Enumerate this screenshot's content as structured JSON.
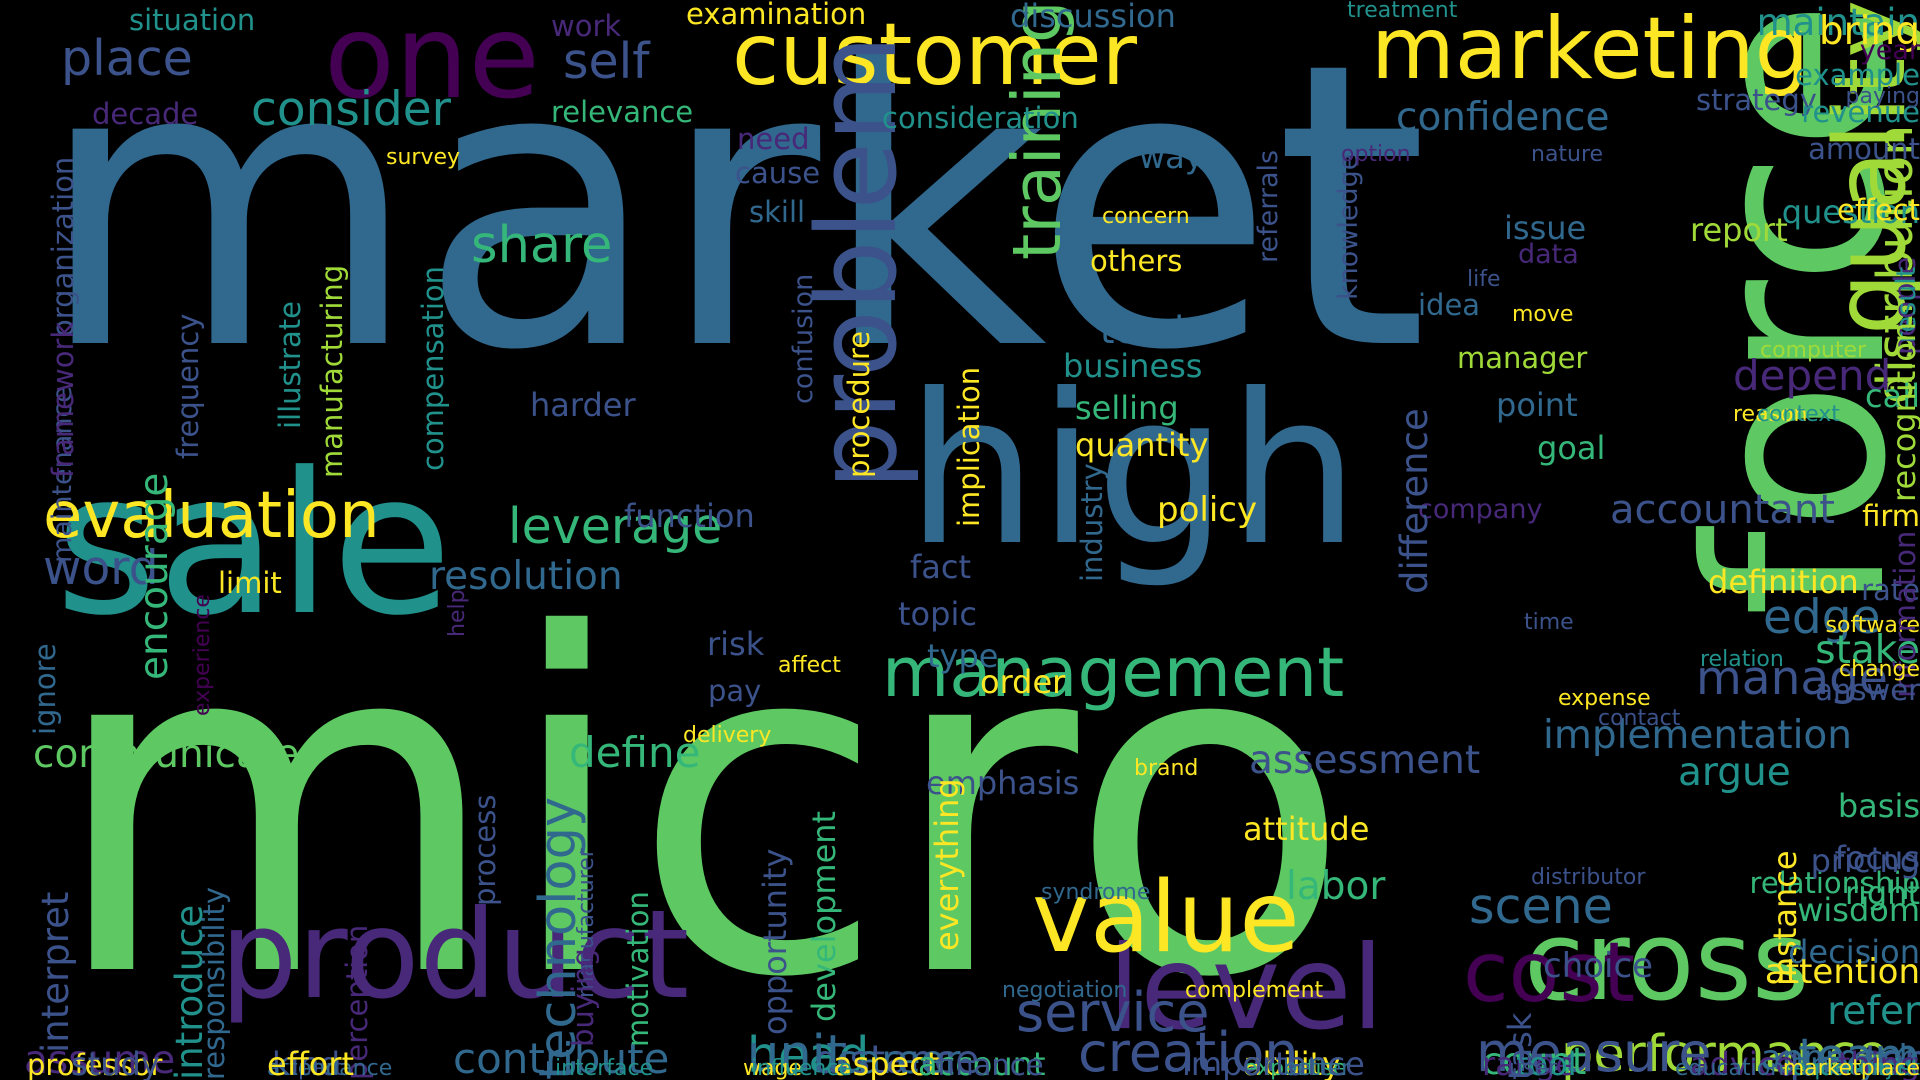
{
  "words": [
    {
      "text": "market",
      "color": "#31688e"
    },
    {
      "text": "micro",
      "color": "#5ec962"
    },
    {
      "text": "sale",
      "color": "#21918c"
    },
    {
      "text": "high",
      "color": "#31688e"
    },
    {
      "text": "force",
      "color": "#5ec962"
    },
    {
      "text": "customer",
      "color": "#fde725"
    },
    {
      "text": "marketing",
      "color": "#fde725"
    },
    {
      "text": "one",
      "color": "#440154"
    },
    {
      "text": "product",
      "color": "#482878"
    },
    {
      "text": "level",
      "color": "#482878"
    },
    {
      "text": "cross",
      "color": "#5ec962"
    },
    {
      "text": "problem",
      "color": "#3b528b"
    },
    {
      "text": "quality",
      "color": "#a0da39"
    },
    {
      "text": "cost",
      "color": "#440154"
    },
    {
      "text": "value",
      "color": "#fde725"
    },
    {
      "text": "management",
      "color": "#35b779"
    },
    {
      "text": "training",
      "color": "#5ec962"
    },
    {
      "text": "evaluation",
      "color": "#fde725"
    },
    {
      "text": "distribution",
      "color": "#a0da39"
    },
    {
      "text": "performance",
      "color": "#a0da39"
    },
    {
      "text": "creation",
      "color": "#3b528b"
    },
    {
      "text": "service",
      "color": "#3b528b"
    },
    {
      "text": "measure",
      "color": "#3b528b"
    },
    {
      "text": "leverage",
      "color": "#35b779"
    },
    {
      "text": "share",
      "color": "#35b779"
    },
    {
      "text": "place",
      "color": "#3b528b"
    },
    {
      "text": "consider",
      "color": "#21918c"
    },
    {
      "text": "scene",
      "color": "#31688e"
    },
    {
      "text": "head",
      "color": "#21918c"
    },
    {
      "text": "technology",
      "color": "#31688e"
    },
    {
      "text": "communicate",
      "color": "#5ec962"
    },
    {
      "text": "define",
      "color": "#35b779"
    },
    {
      "text": "word",
      "color": "#3b528b"
    },
    {
      "text": "resolution",
      "color": "#31688e"
    },
    {
      "text": "accountant",
      "color": "#3b528b"
    },
    {
      "text": "implementation",
      "color": "#31688e"
    },
    {
      "text": "assessment",
      "color": "#3b528b"
    },
    {
      "text": "manage",
      "color": "#3b528b"
    },
    {
      "text": "edge",
      "color": "#31688e"
    },
    {
      "text": "argue",
      "color": "#21918c"
    },
    {
      "text": "stake",
      "color": "#35b779"
    },
    {
      "text": "confidence",
      "color": "#31688e"
    },
    {
      "text": "maintain",
      "color": "#21918c"
    },
    {
      "text": "bring",
      "color": "#fde725"
    },
    {
      "text": "self",
      "color": "#3b528b"
    },
    {
      "text": "distance",
      "color": "#3b528b"
    },
    {
      "text": "career",
      "color": "#31688e"
    },
    {
      "text": "unit",
      "color": "#31688e"
    },
    {
      "text": "contribute",
      "color": "#31688e"
    },
    {
      "text": "quarter",
      "color": "#3b528b"
    },
    {
      "text": "team",
      "color": "#31688e"
    },
    {
      "text": "assume",
      "color": "#482878"
    },
    {
      "text": "labor",
      "color": "#35b779"
    },
    {
      "text": "depend",
      "color": "#482878"
    },
    {
      "text": "encourage",
      "color": "#35b779"
    },
    {
      "text": "introduce",
      "color": "#21918c"
    },
    {
      "text": "interpret",
      "color": "#3b528b"
    },
    {
      "text": "refer",
      "color": "#21918c"
    },
    {
      "text": "count",
      "color": "#35b779"
    },
    {
      "text": "situation",
      "color": "#21918c"
    },
    {
      "text": "examination",
      "color": "#fde725"
    },
    {
      "text": "discussion",
      "color": "#31688e"
    },
    {
      "text": "treatment",
      "color": "#21918c"
    },
    {
      "text": "work",
      "color": "#482878"
    },
    {
      "text": "relevance",
      "color": "#35b779"
    },
    {
      "text": "consideration",
      "color": "#21918c"
    },
    {
      "text": "strategy",
      "color": "#3b528b"
    },
    {
      "text": "year",
      "color": "#440154"
    },
    {
      "text": "example",
      "color": "#21918c"
    },
    {
      "text": "revenue",
      "color": "#21918c"
    },
    {
      "text": "paying",
      "color": "#3b528b"
    },
    {
      "text": "decade",
      "color": "#482878"
    },
    {
      "text": "organization",
      "color": "#3b528b"
    },
    {
      "text": "survey",
      "color": "#fde725"
    },
    {
      "text": "need",
      "color": "#482878"
    },
    {
      "text": "cause",
      "color": "#3b528b"
    },
    {
      "text": "skill",
      "color": "#31688e"
    },
    {
      "text": "way",
      "color": "#31688e"
    },
    {
      "text": "knowledge",
      "color": "#3b528b"
    },
    {
      "text": "option",
      "color": "#482878"
    },
    {
      "text": "nature",
      "color": "#3b528b"
    },
    {
      "text": "amount",
      "color": "#3b528b"
    },
    {
      "text": "referrals",
      "color": "#3b528b"
    },
    {
      "text": "concern",
      "color": "#fde725"
    },
    {
      "text": "others",
      "color": "#fde725"
    },
    {
      "text": "report",
      "color": "#a0da39"
    },
    {
      "text": "question",
      "color": "#21918c"
    },
    {
      "text": "effect",
      "color": "#fde725"
    },
    {
      "text": "issue",
      "color": "#31688e"
    },
    {
      "text": "data",
      "color": "#482878"
    },
    {
      "text": "life",
      "color": "#3b528b"
    },
    {
      "text": "idea",
      "color": "#31688e"
    },
    {
      "text": "move",
      "color": "#fde725"
    },
    {
      "text": "people",
      "color": "#482878"
    },
    {
      "text": "result",
      "color": "#21918c"
    },
    {
      "text": "tend",
      "color": "#31688e"
    },
    {
      "text": "business",
      "color": "#21918c"
    },
    {
      "text": "manager",
      "color": "#a0da39"
    },
    {
      "text": "computer",
      "color": "#a0da39"
    },
    {
      "text": "selling",
      "color": "#35b779"
    },
    {
      "text": "quantity",
      "color": "#fde725"
    },
    {
      "text": "point",
      "color": "#31688e"
    },
    {
      "text": "reason",
      "color": "#fde725"
    },
    {
      "text": "context",
      "color": "#21918c"
    },
    {
      "text": "call",
      "color": "#35b779"
    },
    {
      "text": "goal",
      "color": "#35b779"
    },
    {
      "text": "recognition",
      "color": "#a0da39"
    },
    {
      "text": "firm",
      "color": "#fde725"
    },
    {
      "text": "maintenance",
      "color": "#3b528b"
    },
    {
      "text": "framework",
      "color": "#482878"
    },
    {
      "text": "frequency",
      "color": "#3b528b"
    },
    {
      "text": "illustrate",
      "color": "#21918c"
    },
    {
      "text": "manufacturing",
      "color": "#a0da39"
    },
    {
      "text": "compensation",
      "color": "#21918c"
    },
    {
      "text": "harder",
      "color": "#3b528b"
    },
    {
      "text": "confusion",
      "color": "#3b528b"
    },
    {
      "text": "procedure",
      "color": "#fde725"
    },
    {
      "text": "implication",
      "color": "#fde725"
    },
    {
      "text": "industry",
      "color": "#31688e"
    },
    {
      "text": "function",
      "color": "#3b528b"
    },
    {
      "text": "policy",
      "color": "#fde725"
    },
    {
      "text": "company",
      "color": "#482878"
    },
    {
      "text": "difference",
      "color": "#3b528b"
    },
    {
      "text": "definition",
      "color": "#fde725"
    },
    {
      "text": "rate",
      "color": "#3b528b"
    },
    {
      "text": "software",
      "color": "#fde725"
    },
    {
      "text": "information",
      "color": "#482878"
    },
    {
      "text": "limit",
      "color": "#fde725"
    },
    {
      "text": "fact",
      "color": "#3b528b"
    },
    {
      "text": "topic",
      "color": "#3b528b"
    },
    {
      "text": "risk",
      "color": "#3b528b"
    },
    {
      "text": "affect",
      "color": "#fde725"
    },
    {
      "text": "type",
      "color": "#31688e"
    },
    {
      "text": "pay",
      "color": "#3b528b"
    },
    {
      "text": "order",
      "color": "#fde725"
    },
    {
      "text": "time",
      "color": "#3b528b"
    },
    {
      "text": "relation",
      "color": "#21918c"
    },
    {
      "text": "change",
      "color": "#fde725"
    },
    {
      "text": "expense",
      "color": "#fde725"
    },
    {
      "text": "contact",
      "color": "#3b528b"
    },
    {
      "text": "answer",
      "color": "#3b528b"
    },
    {
      "text": "ignore",
      "color": "#31688e"
    },
    {
      "text": "help",
      "color": "#482878"
    },
    {
      "text": "experience",
      "color": "#440154"
    },
    {
      "text": "delivery",
      "color": "#fde725"
    },
    {
      "text": "brand",
      "color": "#fde725"
    },
    {
      "text": "emphasis",
      "color": "#3b528b"
    },
    {
      "text": "basis",
      "color": "#35b779"
    },
    {
      "text": "focus",
      "color": "#3b528b"
    },
    {
      "text": "attitude",
      "color": "#fde725"
    },
    {
      "text": "process",
      "color": "#3b528b"
    },
    {
      "text": "relationship",
      "color": "#35b779"
    },
    {
      "text": "distributor",
      "color": "#3b528b"
    },
    {
      "text": "right",
      "color": "#35b779"
    },
    {
      "text": "pricing",
      "color": "#3b528b"
    },
    {
      "text": "wisdom",
      "color": "#35b779"
    },
    {
      "text": "opportunity",
      "color": "#3b528b"
    },
    {
      "text": "development",
      "color": "#35b779"
    },
    {
      "text": "everything",
      "color": "#fde725"
    },
    {
      "text": "syndrome",
      "color": "#31688e"
    },
    {
      "text": "manufacturer",
      "color": "#3b528b"
    },
    {
      "text": "instance",
      "color": "#fde725"
    },
    {
      "text": "decision",
      "color": "#31688e"
    },
    {
      "text": "responsibility",
      "color": "#31688e"
    },
    {
      "text": "perception",
      "color": "#482878"
    },
    {
      "text": "buying",
      "color": "#482878"
    },
    {
      "text": "motivation",
      "color": "#35b779"
    },
    {
      "text": "negotiation",
      "color": "#31688e"
    },
    {
      "text": "complement",
      "color": "#fde725"
    },
    {
      "text": "choice",
      "color": "#3b528b"
    },
    {
      "text": "attention",
      "color": "#fde725"
    },
    {
      "text": "approach",
      "color": "#31688e"
    },
    {
      "text": "kind",
      "color": "#3b528b"
    },
    {
      "text": "part",
      "color": "#3b528b"
    },
    {
      "text": "attendance",
      "color": "#31688e"
    },
    {
      "text": "job",
      "color": "#21918c"
    },
    {
      "text": "ability",
      "color": "#fde725"
    },
    {
      "text": "aspect",
      "color": "#fde725"
    },
    {
      "text": "range",
      "color": "#482878"
    },
    {
      "text": "expertise",
      "color": "#35b779"
    },
    {
      "text": "tool",
      "color": "#21918c"
    },
    {
      "text": "advice",
      "color": "#482878"
    },
    {
      "text": "analysis",
      "color": "#31688e"
    },
    {
      "text": "requirement",
      "color": "#21918c"
    },
    {
      "text": "professor",
      "color": "#fde725"
    },
    {
      "text": "interface",
      "color": "#21918c"
    },
    {
      "text": "wage",
      "color": "#fde725"
    },
    {
      "text": "importance",
      "color": "#3b528b"
    },
    {
      "text": "task",
      "color": "#3b528b"
    },
    {
      "text": "thing",
      "color": "#482878"
    },
    {
      "text": "economist",
      "color": "#21918c"
    },
    {
      "text": "study",
      "color": "#3b528b"
    },
    {
      "text": "effort",
      "color": "#fde725"
    },
    {
      "text": "influence",
      "color": "#21918c"
    },
    {
      "text": "account",
      "color": "#35b779"
    },
    {
      "text": "finance",
      "color": "#3b528b"
    },
    {
      "text": "better",
      "color": "#31688e"
    },
    {
      "text": "user",
      "color": "#3b528b"
    },
    {
      "text": "education",
      "color": "#31688e"
    },
    {
      "text": "marketplace",
      "color": "#fde725"
    }
  ]
}
